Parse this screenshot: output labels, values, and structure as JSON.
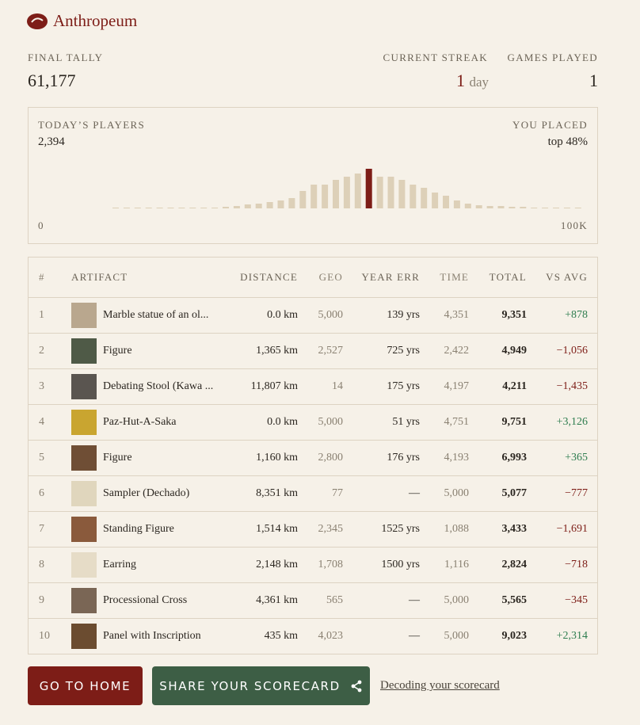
{
  "header": {
    "logo": "Anthropeum"
  },
  "stats": {
    "final_tally": {
      "label": "FINAL TALLY",
      "value": "61,177"
    },
    "current_streak": {
      "label": "CURRENT STREAK",
      "value": "1",
      "unit": "day"
    },
    "games_played": {
      "label": "GAMES PLAYED",
      "value": "1"
    }
  },
  "histogram": {
    "label": "TODAY’S PLAYERS",
    "count": "2,394",
    "placed_label": "YOU PLACED",
    "placed": "top 48%",
    "min_label": "0",
    "max_label": "100K",
    "values": [
      1,
      1,
      1,
      1,
      1,
      1,
      1,
      1,
      1,
      1,
      2,
      3,
      5,
      6,
      8,
      10,
      13,
      22,
      30,
      30,
      36,
      40,
      44,
      50,
      40,
      40,
      36,
      30,
      26,
      20,
      16,
      10,
      6,
      4,
      3,
      3,
      2,
      2,
      1,
      1,
      1,
      1,
      1
    ],
    "highlight": 23
  },
  "table": {
    "headers": [
      "#",
      "ARTIFACT",
      "DISTANCE",
      "GEO",
      "YEAR ERR",
      "TIME",
      "TOTAL",
      "VS AVG"
    ],
    "rows": [
      [
        "1",
        "Marble statue of an ol...",
        "0.0 km",
        "5,000",
        "139 yrs",
        "4,351",
        "9,351",
        "+878"
      ],
      [
        "2",
        "Figure",
        "1,365 km",
        "2,527",
        "725 yrs",
        "2,422",
        "4,949",
        "−1,056"
      ],
      [
        "3",
        "Debating Stool (Kawa ...",
        "11,807 km",
        "14",
        "175 yrs",
        "4,197",
        "4,211",
        "−1,435"
      ],
      [
        "4",
        "Paz-Hut-A-Saka",
        "0.0 km",
        "5,000",
        "51 yrs",
        "4,751",
        "9,751",
        "+3,126"
      ],
      [
        "5",
        "Figure",
        "1,160 km",
        "2,800",
        "176 yrs",
        "4,193",
        "6,993",
        "+365"
      ],
      [
        "6",
        "Sampler (Dechado)",
        "8,351 km",
        "77",
        "—",
        "5,000",
        "5,077",
        "−777"
      ],
      [
        "7",
        "Standing Figure",
        "1,514 km",
        "2,345",
        "1525 yrs",
        "1,088",
        "3,433",
        "−1,691"
      ],
      [
        "8",
        "Earring",
        "2,148 km",
        "1,708",
        "1500 yrs",
        "1,116",
        "2,824",
        "−718"
      ],
      [
        "9",
        "Processional Cross",
        "4,361 km",
        "565",
        "—",
        "5,000",
        "5,565",
        "−345"
      ],
      [
        "10",
        "Panel with Inscription",
        "435 km",
        "4,023",
        "—",
        "5,000",
        "9,023",
        "+2,314"
      ]
    ]
  },
  "actions": {
    "home": "GO TO HOME",
    "share": "SHARE YOUR SCORECARD",
    "link": "Decoding your scorecard"
  }
}
